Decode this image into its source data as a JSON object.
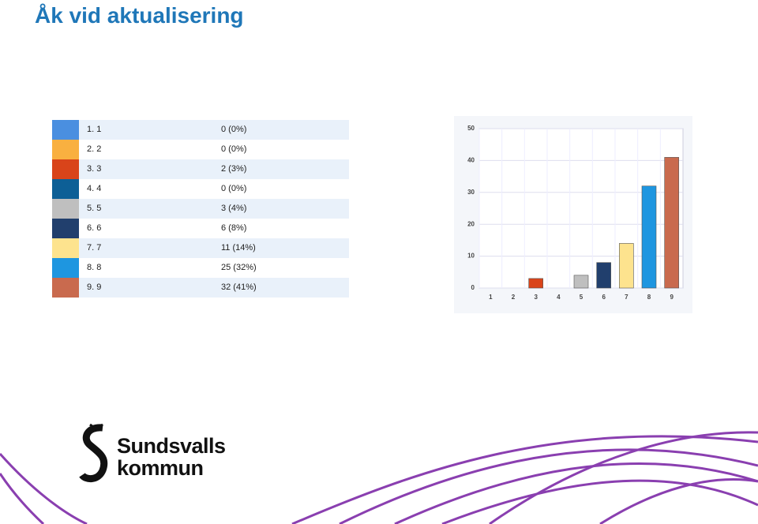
{
  "title": "Åk vid aktualisering",
  "table": {
    "rows": [
      {
        "color": "#4a8fe0",
        "label": "1. 1",
        "value": "0 (0%)"
      },
      {
        "color": "#f9b040",
        "label": "2. 2",
        "value": "0 (0%)"
      },
      {
        "color": "#d9441a",
        "label": "3. 3",
        "value": "2 (3%)"
      },
      {
        "color": "#0d5f96",
        "label": "4. 4",
        "value": "0 (0%)"
      },
      {
        "color": "#bfbfbf",
        "label": "5. 5",
        "value": "3 (4%)"
      },
      {
        "color": "#213f6d",
        "label": "6. 6",
        "value": "6 (8%)"
      },
      {
        "color": "#fde38e",
        "label": "7. 7",
        "value": "11 (14%)"
      },
      {
        "color": "#1e96e0",
        "label": "8. 8",
        "value": "25 (32%)"
      },
      {
        "color": "#c96a4e",
        "label": "9. 9",
        "value": "32 (41%)"
      }
    ]
  },
  "chart_data": {
    "type": "bar",
    "categories": [
      "1",
      "2",
      "3",
      "4",
      "5",
      "6",
      "7",
      "8",
      "9"
    ],
    "values": [
      0,
      0,
      3,
      0,
      4,
      8,
      14,
      32,
      41
    ],
    "colors": [
      "#4a8fe0",
      "#f9b040",
      "#d9441a",
      "#0d5f96",
      "#bfbfbf",
      "#213f6d",
      "#fde38e",
      "#1e96e0",
      "#c96a4e"
    ],
    "ylim": [
      0,
      50
    ],
    "yticks": [
      0,
      10,
      20,
      30,
      40,
      50
    ],
    "grid": true
  },
  "logo": {
    "line1": "Sundsvalls",
    "line2": "kommun"
  }
}
